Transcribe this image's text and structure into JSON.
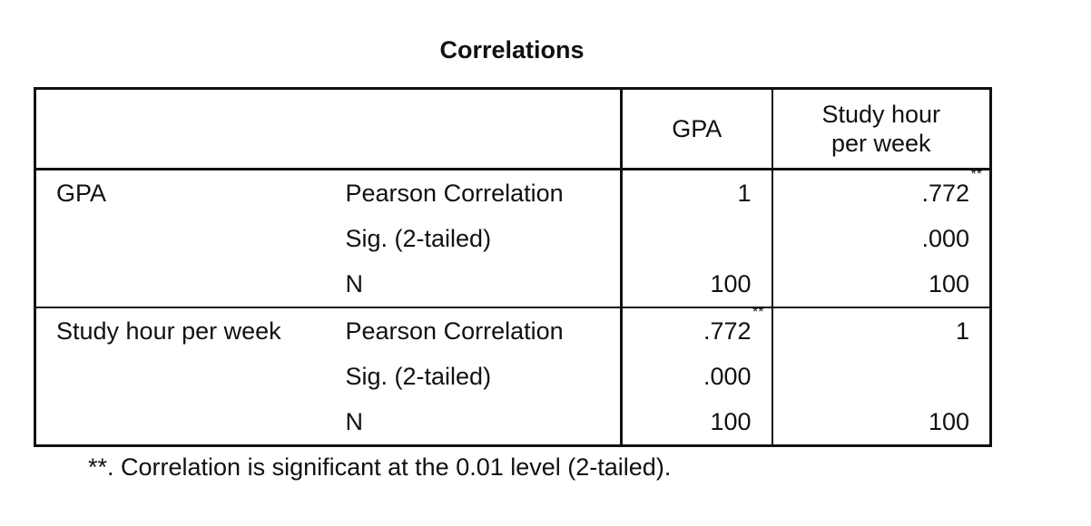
{
  "title": "Correlations",
  "header": {
    "empty_1": "",
    "empty_2": "",
    "col_gpa": "GPA",
    "col_study_line1": "Study hour",
    "col_study_line2": "per week"
  },
  "rows": [
    {
      "label": "GPA",
      "stats": [
        {
          "stat": "Pearson Correlation",
          "gpa": "1",
          "gpa_sig": "",
          "study": ".772",
          "study_sig": "**"
        },
        {
          "stat": "Sig. (2-tailed)",
          "gpa": "",
          "gpa_sig": "",
          "study": ".000",
          "study_sig": ""
        },
        {
          "stat": "N",
          "gpa": "100",
          "gpa_sig": "",
          "study": "100",
          "study_sig": ""
        }
      ]
    },
    {
      "label": "Study hour per week",
      "stats": [
        {
          "stat": "Pearson Correlation",
          "gpa": ".772",
          "gpa_sig": "**",
          "study": "1",
          "study_sig": ""
        },
        {
          "stat": "Sig. (2-tailed)",
          "gpa": ".000",
          "gpa_sig": "",
          "study": "",
          "study_sig": ""
        },
        {
          "stat": "N",
          "gpa": "100",
          "gpa_sig": "",
          "study": "100",
          "study_sig": ""
        }
      ]
    }
  ],
  "footnote": "**. Correlation is significant at the 0.01 level (2-tailed)."
}
